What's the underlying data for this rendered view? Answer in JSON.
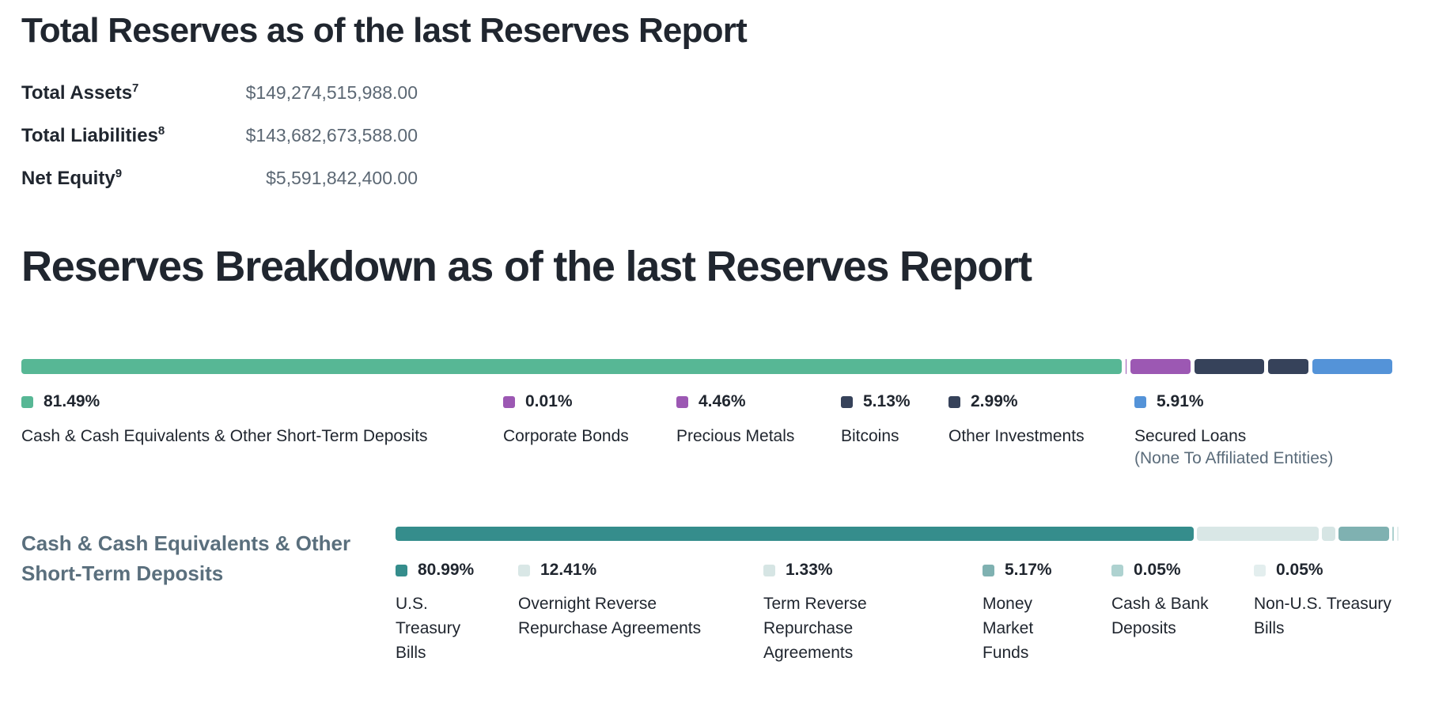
{
  "sections": {
    "total_reserves": {
      "title": "Total Reserves as of the last Reserves Report",
      "rows": [
        {
          "label": "Total Assets",
          "footnote": "7",
          "value": "$149,274,515,988.00"
        },
        {
          "label": "Total Liabilities",
          "footnote": "8",
          "value": "$143,682,673,588.00"
        },
        {
          "label": "Net Equity",
          "footnote": "9",
          "value": "$5,591,842,400.00"
        }
      ]
    },
    "reserves_breakdown": {
      "title": "Reserves Breakdown as of the last Reserves Report"
    },
    "cash_equivalents": {
      "title": "Cash & Cash Equivalents & Other Short-Term Deposits"
    }
  },
  "chart_data": [
    {
      "type": "bar",
      "variant": "stacked-horizontal",
      "title": "Reserves Breakdown as of the last Reserves Report",
      "unit": "%",
      "total": 100,
      "segments": [
        {
          "label": "Cash & Cash Equivalents & Other Short-Term Deposits",
          "pct": 81.49,
          "pct_label": "81.49%",
          "color": "#57b795"
        },
        {
          "label": "Corporate Bonds",
          "pct": 0.01,
          "pct_label": "0.01%",
          "color": "#9c58b3"
        },
        {
          "label": "Precious Metals",
          "pct": 4.46,
          "pct_label": "4.46%",
          "color": "#9c58b3"
        },
        {
          "label": "Bitcoins",
          "pct": 5.13,
          "pct_label": "5.13%",
          "color": "#36425a"
        },
        {
          "label": "Other Investments",
          "pct": 2.99,
          "pct_label": "2.99%",
          "color": "#36425a"
        },
        {
          "label": "Secured Loans",
          "sublabel": "(None To Affiliated Entities)",
          "pct": 5.91,
          "pct_label": "5.91%",
          "color": "#5493d8"
        }
      ]
    },
    {
      "type": "bar",
      "variant": "stacked-horizontal",
      "title": "Cash & Cash Equivalents & Other Short-Term Deposits",
      "unit": "%",
      "total": 100,
      "segments": [
        {
          "label": "U.S. Treasury Bills",
          "pct": 80.99,
          "pct_label": "80.99%",
          "color": "#358d8c"
        },
        {
          "label": "Overnight Reverse Repurchase Agreements",
          "pct": 12.41,
          "pct_label": "12.41%",
          "color": "#d9e7e6"
        },
        {
          "label": "Term Reverse Repurchase Agreements",
          "pct": 1.33,
          "pct_label": "1.33%",
          "color": "#d6e5e4"
        },
        {
          "label": "Money Market Funds",
          "pct": 5.17,
          "pct_label": "5.17%",
          "color": "#7fb1b1"
        },
        {
          "label": "Cash & Bank Deposits",
          "pct": 0.05,
          "pct_label": "0.05%",
          "color": "#aed2d0"
        },
        {
          "label": "Non-U.S. Treasury Bills",
          "pct": 0.05,
          "pct_label": "0.05%",
          "color": "#e3eeee"
        }
      ]
    }
  ]
}
